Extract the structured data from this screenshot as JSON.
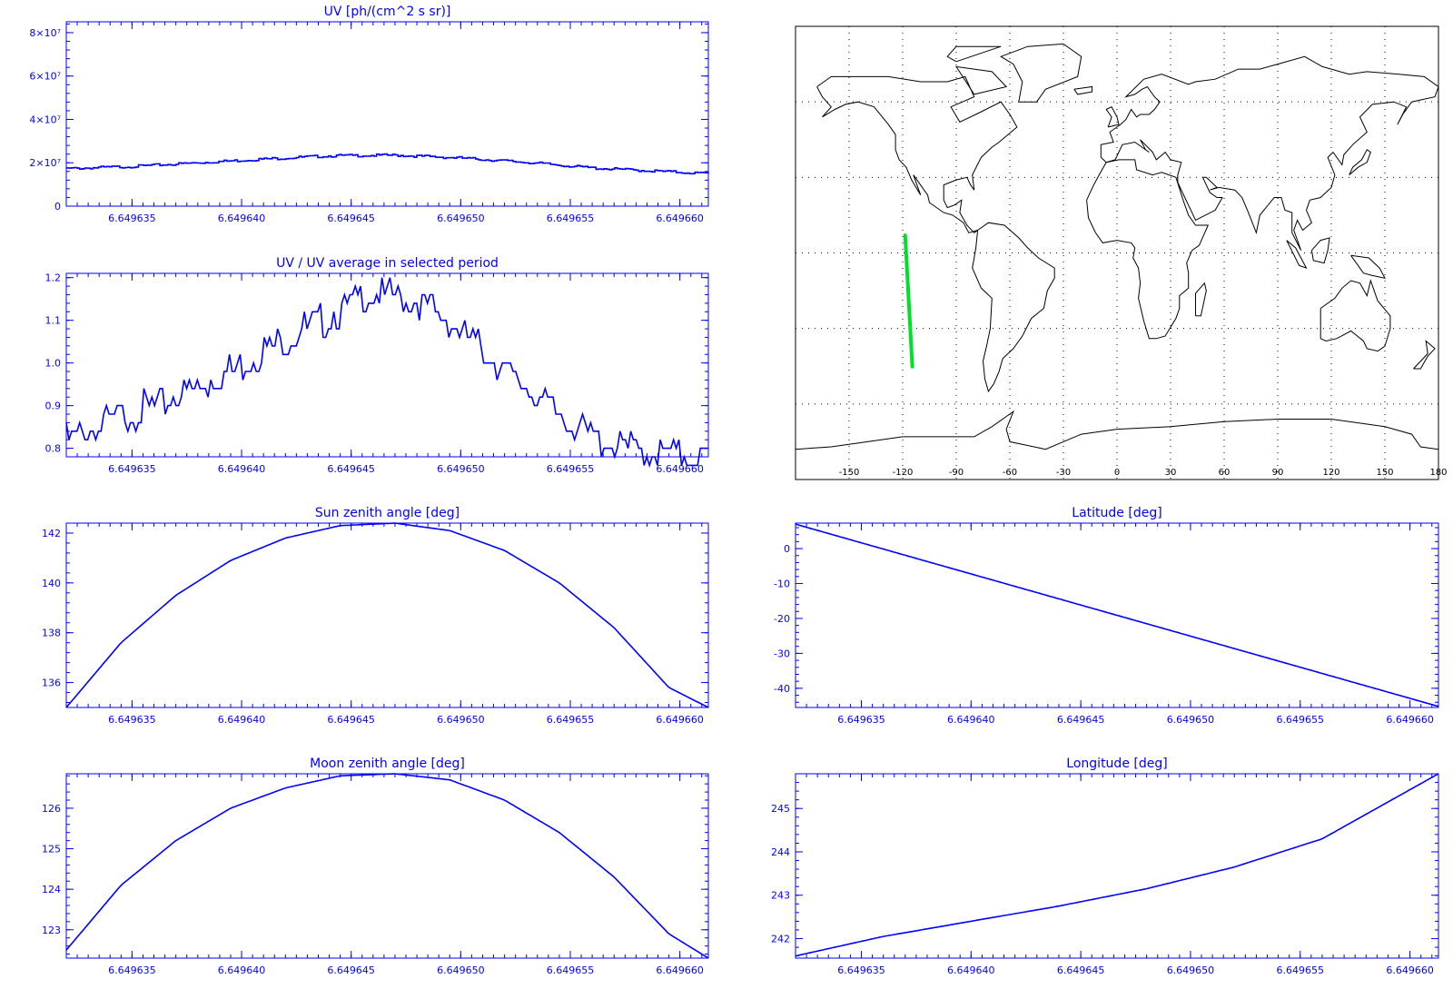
{
  "colors": {
    "axis": "#0000ff",
    "series": "#0000ff",
    "map": "#000000",
    "track": "#00e02a",
    "background": "#ffffff"
  },
  "x_tick_labels": [
    "6.649635",
    "6.649640",
    "6.649645",
    "6.649650",
    "6.649655",
    "6.649660"
  ],
  "chart_data": [
    {
      "id": "uv",
      "type": "line",
      "title": "UV [ph/(cm^2 s sr)]",
      "xlim": [
        6.649632,
        6.6496613
      ],
      "ylim": [
        0,
        85000000
      ],
      "yticks": [
        0,
        20000000,
        40000000,
        60000000,
        80000000
      ],
      "yticklabels": [
        "0",
        "2×10⁷",
        "4×10⁷",
        "6×10⁷",
        "8×10⁷"
      ],
      "step": true,
      "x": [
        6.649632,
        6.649635,
        6.649638,
        6.649641,
        6.649644,
        6.649647,
        6.64965,
        6.649653,
        6.649656,
        6.649659,
        6.6496613
      ],
      "y": [
        17600000,
        18600000,
        20300000,
        22000000,
        23500000,
        23800000,
        22500000,
        20500000,
        17900000,
        16400000,
        15300000
      ]
    },
    {
      "id": "uv-ratio",
      "type": "line",
      "title": "UV / UV average in selected period",
      "xlim": [
        6.649632,
        6.6496613
      ],
      "ylim": [
        0.78,
        1.21
      ],
      "yticks": [
        0.8,
        0.9,
        1.0,
        1.1,
        1.2
      ],
      "yticklabels": [
        "0.8",
        "0.9",
        "1.0",
        "1.1",
        "1.2"
      ],
      "x": [
        6.649632,
        6.6496335,
        6.649635,
        6.6496365,
        6.649638,
        6.6496395,
        6.649641,
        6.6496425,
        6.649644,
        6.6496455,
        6.649647,
        6.6496485,
        6.64965,
        6.6496515,
        6.649653,
        6.6496545,
        6.649656,
        6.6496575,
        6.649659,
        6.6496613
      ],
      "y": [
        0.84,
        0.87,
        0.9,
        0.93,
        0.96,
        1.0,
        1.05,
        1.09,
        1.13,
        1.17,
        1.18,
        1.15,
        1.09,
        1.03,
        0.96,
        0.9,
        0.85,
        0.82,
        0.81,
        0.8
      ]
    },
    {
      "id": "sun-zenith",
      "type": "line",
      "title": "Sun zenith angle [deg]",
      "xlim": [
        6.649632,
        6.6496613
      ],
      "ylim": [
        135,
        142.4
      ],
      "yticks": [
        136,
        138,
        140,
        142
      ],
      "yticklabels": [
        "136",
        "138",
        "140",
        "142"
      ],
      "x": [
        6.649632,
        6.6496345,
        6.649637,
        6.6496395,
        6.649642,
        6.6496445,
        6.649647,
        6.6496495,
        6.649652,
        6.6496545,
        6.649657,
        6.6496595,
        6.6496613
      ],
      "y": [
        135.0,
        137.6,
        139.5,
        140.9,
        141.8,
        142.3,
        142.4,
        142.1,
        141.3,
        140.0,
        138.2,
        135.8,
        135.0
      ]
    },
    {
      "id": "moon-zenith",
      "type": "line",
      "title": "Moon zenith angle [deg]",
      "xlim": [
        6.649632,
        6.6496613
      ],
      "ylim": [
        122.3,
        126.85
      ],
      "yticks": [
        123,
        124,
        125,
        126
      ],
      "yticklabels": [
        "123",
        "124",
        "125",
        "126"
      ],
      "x": [
        6.649632,
        6.6496345,
        6.649637,
        6.6496395,
        6.649642,
        6.6496445,
        6.649647,
        6.6496495,
        6.649652,
        6.6496545,
        6.649657,
        6.6496595,
        6.6496613
      ],
      "y": [
        122.5,
        124.1,
        125.2,
        126.0,
        126.5,
        126.8,
        126.85,
        126.7,
        126.2,
        125.4,
        124.3,
        122.9,
        122.3
      ]
    },
    {
      "id": "latitude",
      "type": "line",
      "title": "Latitude [deg]",
      "xlim": [
        6.649632,
        6.6496613
      ],
      "ylim": [
        -45.5,
        7.3
      ],
      "yticks": [
        -40,
        -30,
        -20,
        -10,
        0
      ],
      "yticklabels": [
        "-40",
        "-30",
        "-20",
        "-10",
        "0"
      ],
      "x": [
        6.649632,
        6.6496613
      ],
      "y": [
        7.0,
        -45.2
      ]
    },
    {
      "id": "longitude",
      "type": "line",
      "title": "Longitude [deg]",
      "xlim": [
        6.649632,
        6.6496613
      ],
      "ylim": [
        241.55,
        245.8
      ],
      "yticks": [
        242,
        243,
        244,
        245
      ],
      "yticklabels": [
        "242",
        "243",
        "244",
        "245"
      ],
      "x": [
        6.649632,
        6.649636,
        6.64964,
        6.649644,
        6.649648,
        6.649652,
        6.649656,
        6.649659,
        6.6496613
      ],
      "y": [
        241.6,
        242.05,
        242.4,
        242.75,
        243.15,
        243.65,
        244.3,
        245.15,
        245.8
      ]
    }
  ],
  "map": {
    "xticklabels": [
      "-150",
      "-120",
      "-90",
      "-60",
      "-30",
      "0",
      "30",
      "60",
      "90",
      "120",
      "150",
      "180"
    ],
    "xticks": [
      -150,
      -120,
      -90,
      -60,
      -30,
      0,
      30,
      60,
      90,
      120,
      150,
      180
    ],
    "lon_range": [
      -180,
      180
    ],
    "lat_range": [
      -90,
      90
    ],
    "grid_lat": [
      -60,
      -30,
      0,
      30,
      60
    ],
    "track": {
      "lon": [
        -118.6,
        -114.6
      ],
      "lat": [
        7.0,
        -45.2
      ]
    }
  }
}
